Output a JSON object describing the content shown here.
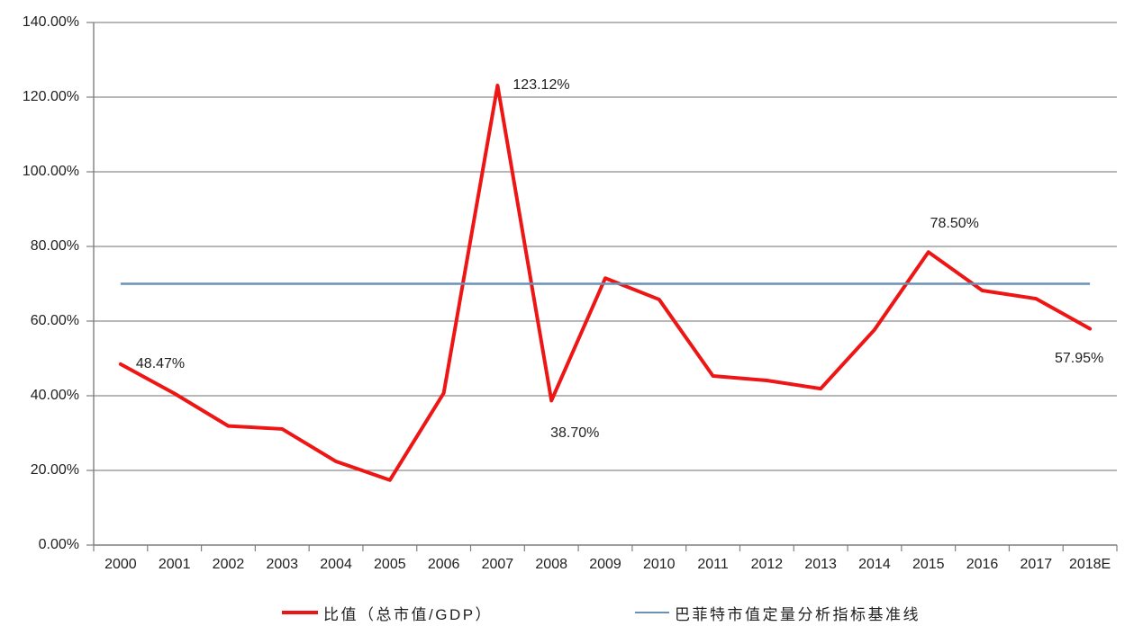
{
  "page": {
    "background": "#ffffff",
    "text_color": "#1f1f1f"
  },
  "chart_data": {
    "type": "line",
    "title": "",
    "xlabel": "",
    "ylabel": "",
    "categories": [
      "2000",
      "2001",
      "2002",
      "2003",
      "2004",
      "2005",
      "2006",
      "2007",
      "2008",
      "2009",
      "2010",
      "2011",
      "2012",
      "2013",
      "2014",
      "2015",
      "2016",
      "2017",
      "2018E"
    ],
    "series": [
      {
        "name": "比值（总市值/GDP）",
        "type": "line",
        "color": "#ee1515",
        "stroke_width": 4,
        "values": [
          48.47,
          40.6,
          31.9,
          31.1,
          22.4,
          17.4,
          40.7,
          123.12,
          38.7,
          71.5,
          65.8,
          45.3,
          44.1,
          41.9,
          57.7,
          78.5,
          68.2,
          66.0,
          57.95
        ]
      },
      {
        "name": "巴菲特市值定量分析指标基准线",
        "type": "baseline",
        "color": "#6b92b5",
        "stroke_width": 2.5,
        "value": 70
      }
    ],
    "y_axis": {
      "min": 0,
      "max": 140,
      "step": 20,
      "tick_labels": [
        "0.00%",
        "20.00%",
        "40.00%",
        "60.00%",
        "80.00%",
        "100.00%",
        "120.00%",
        "140.00%"
      ]
    },
    "x_axis": {
      "tick_labels": [
        "2000",
        "2001",
        "2002",
        "2003",
        "2004",
        "2005",
        "2006",
        "2007",
        "2008",
        "2009",
        "2010",
        "2011",
        "2012",
        "2013",
        "2014",
        "2015",
        "2016",
        "2017",
        "2018E"
      ]
    },
    "annotations": [
      {
        "text": "48.47%",
        "series": 0,
        "index": 0,
        "placement": "right"
      },
      {
        "text": "123.12%",
        "series": 0,
        "index": 7,
        "placement": "right"
      },
      {
        "text": "38.70%",
        "series": 0,
        "index": 8,
        "placement": "below"
      },
      {
        "text": "78.50%",
        "series": 0,
        "index": 15,
        "placement": "above-right"
      },
      {
        "text": "57.95%",
        "series": 0,
        "index": 18,
        "placement": "below-left"
      }
    ],
    "grid": {
      "on": true,
      "color": "#8c8c8c",
      "axis_color": "#7f7f7f"
    },
    "legend_position": "bottom"
  }
}
